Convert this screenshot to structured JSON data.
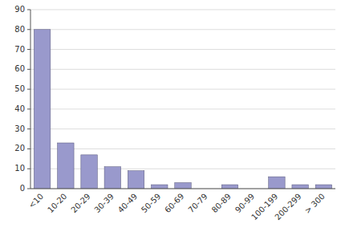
{
  "chart_data": {
    "type": "bar",
    "categories": [
      "<10",
      "10-20",
      "20-29",
      "30-39",
      "40-49",
      "50-59",
      "60-69",
      "70-79",
      "80-89",
      "90-99",
      "100-199",
      "200-299",
      "> 300"
    ],
    "values": [
      80,
      23,
      17,
      11,
      9,
      2,
      3,
      0,
      2,
      0,
      6,
      2,
      2
    ],
    "color": "#9999cc",
    "ylim": [
      0,
      90
    ],
    "yticks": [
      0,
      10,
      20,
      30,
      40,
      50,
      60,
      70,
      80,
      90
    ],
    "grid": true
  }
}
